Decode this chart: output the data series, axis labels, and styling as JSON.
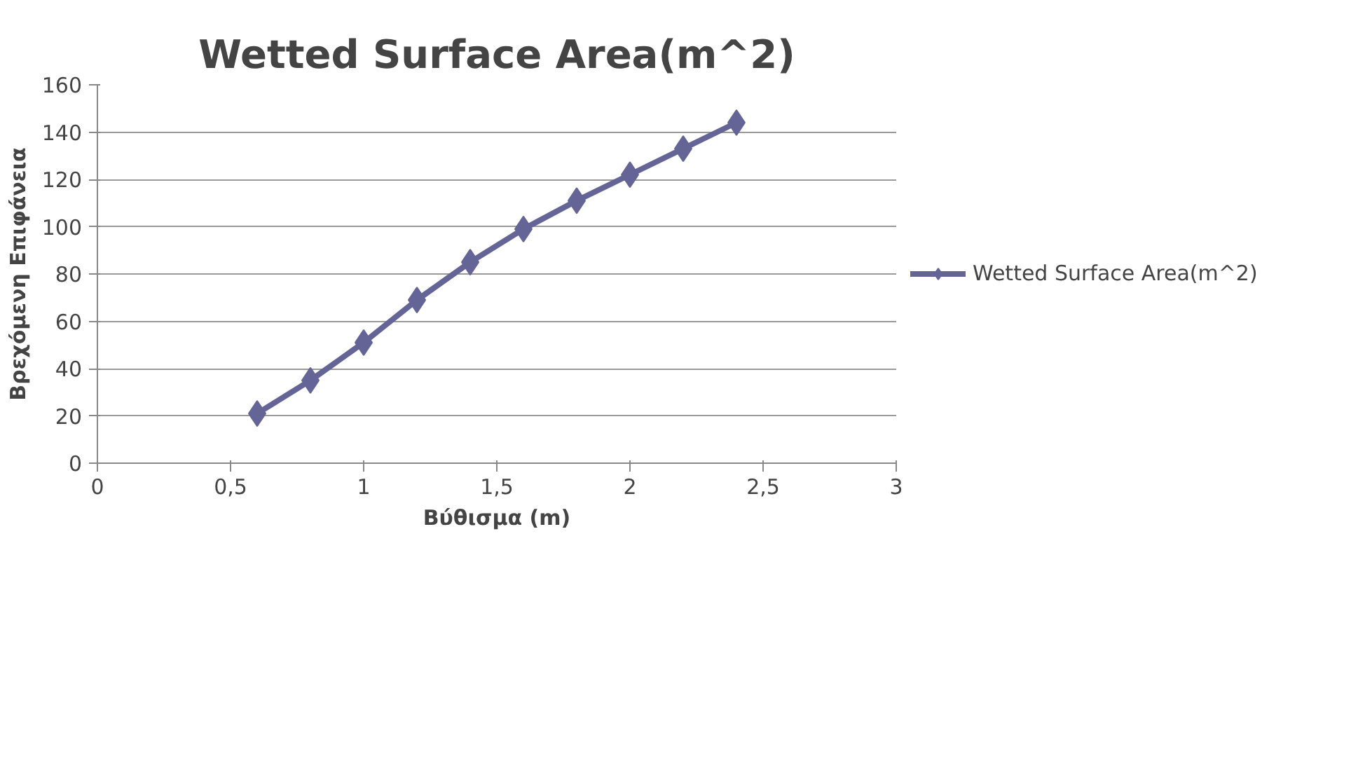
{
  "chart_data": {
    "type": "line",
    "title": "Wetted Surface Area(m^2)",
    "xlabel": "Βύθισμα (m)",
    "ylabel": "Βρεχόμενη Επιφάνεια",
    "x": [
      0.6,
      0.8,
      1.0,
      1.2,
      1.4,
      1.6,
      1.8,
      2.0,
      2.2,
      2.4
    ],
    "series": [
      {
        "name": "Wetted Surface Area(m^2)",
        "color": "#646497",
        "values": [
          21,
          35,
          51,
          69,
          85,
          99,
          111,
          122,
          133,
          144
        ]
      }
    ],
    "xlim": [
      0,
      3
    ],
    "xticks": [
      0,
      {
        "value": 0.5,
        "label": "0,5"
      },
      1,
      {
        "value": 1.5,
        "label": "1,5"
      },
      2,
      {
        "value": 2.5,
        "label": "2,5"
      },
      3
    ],
    "ylim": [
      0,
      160
    ],
    "yticks": [
      0,
      20,
      40,
      60,
      80,
      100,
      120,
      140,
      160
    ],
    "grid": "y",
    "legend": "right",
    "marker": "diamond",
    "line_style": "solid"
  }
}
